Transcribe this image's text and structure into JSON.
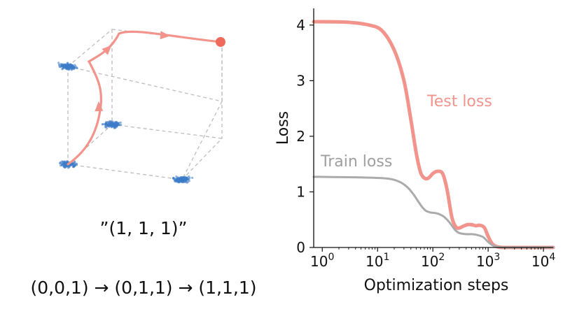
{
  "cube_panel": {
    "concept_label": "”(1, 1, 1)”",
    "path_label": "(0,0,1) → (0,1,1) → (1,1,1)",
    "colors": {
      "cluster": "#3d7cc9",
      "trajectory": "#f2938c",
      "endpoint": "#ee6b5b",
      "edges": "#bdbdbd"
    }
  },
  "chart_data": {
    "type": "line",
    "xlabel": "Optimization steps",
    "ylabel": "Loss",
    "xscale": "log",
    "xlim": [
      0.7,
      15000
    ],
    "ylim": [
      0,
      4.3
    ],
    "xticks": [
      {
        "value": 1,
        "base": "10",
        "exp": "0"
      },
      {
        "value": 10,
        "base": "10",
        "exp": "1"
      },
      {
        "value": 100,
        "base": "10",
        "exp": "2"
      },
      {
        "value": 1000,
        "base": "10",
        "exp": "3"
      },
      {
        "value": 10000,
        "base": "10",
        "exp": "4"
      }
    ],
    "yticks": [
      0,
      1,
      2,
      3,
      4
    ],
    "grid": false,
    "series": [
      {
        "name": "Test loss",
        "color": "#f2938c",
        "x": [
          0.7,
          1,
          3,
          7,
          12,
          20,
          30,
          40,
          50,
          60,
          70,
          80,
          90,
          100,
          120,
          150,
          180,
          220,
          260,
          300,
          350,
          420,
          500,
          600,
          700,
          850,
          1000,
          1200,
          1500,
          2000,
          5000,
          15000
        ],
        "y": [
          4.06,
          4.06,
          4.05,
          4.0,
          3.9,
          3.55,
          3.0,
          2.3,
          1.7,
          1.35,
          1.25,
          1.24,
          1.28,
          1.33,
          1.37,
          1.33,
          1.05,
          0.55,
          0.37,
          0.35,
          0.38,
          0.41,
          0.41,
          0.39,
          0.4,
          0.36,
          0.2,
          0.06,
          0.01,
          0.0,
          0.0,
          0.0
        ]
      },
      {
        "name": "Train loss",
        "color": "#ababab",
        "x": [
          0.7,
          1,
          5,
          15,
          25,
          35,
          45,
          55,
          65,
          75,
          90,
          110,
          130,
          160,
          200,
          250,
          300,
          400,
          500,
          600,
          800,
          1000,
          1200,
          1500,
          2000,
          5000,
          15000
        ],
        "y": [
          1.27,
          1.27,
          1.26,
          1.24,
          1.18,
          1.08,
          0.95,
          0.82,
          0.72,
          0.66,
          0.63,
          0.62,
          0.6,
          0.55,
          0.45,
          0.32,
          0.26,
          0.24,
          0.24,
          0.23,
          0.19,
          0.1,
          0.04,
          0.01,
          0.0,
          0.0,
          0.0
        ]
      }
    ]
  }
}
